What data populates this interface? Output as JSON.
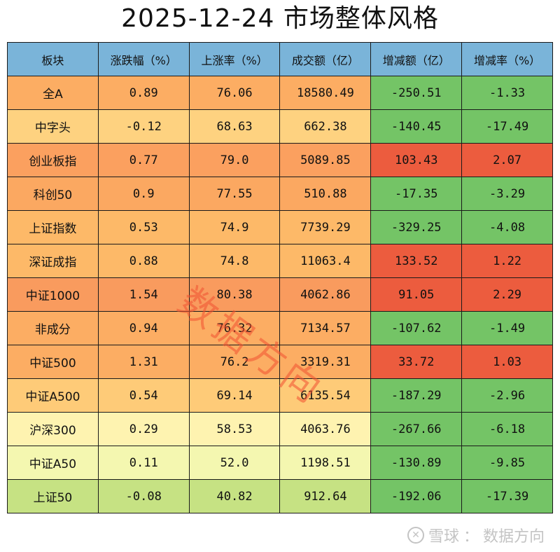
{
  "title": "2025-12-24 市场整体风格",
  "watermark": "数据方向",
  "footer": {
    "brand": "雪球",
    "separator": "：",
    "author": "数据方向",
    "logo_icon": "xueqiu-logo-icon"
  },
  "colors": {
    "header": "#7ab4d9",
    "positive": "#ec5c3e",
    "negative": "#74c466",
    "border": "#1a1a1a"
  },
  "table": {
    "headers": [
      "板块",
      "涨跌幅（%）",
      "上涨率（%）",
      "成交额（亿）",
      "增减额（亿）",
      "增减率（%）"
    ],
    "rows": [
      {
        "name": "全A",
        "chg": "0.89",
        "up": "76.06",
        "amt": "18580.49",
        "delta": "-250.51",
        "rate": "-1.33",
        "bg": "#fcad63"
      },
      {
        "name": "中字头",
        "chg": "-0.12",
        "up": "68.63",
        "amt": "662.38",
        "delta": "-140.45",
        "rate": "-17.49",
        "bg": "#fed280"
      },
      {
        "name": "创业板指",
        "chg": "0.77",
        "up": "79.0",
        "amt": "5089.85",
        "delta": "103.43",
        "rate": "2.07",
        "bg": "#fba05f"
      },
      {
        "name": "科创50",
        "chg": "0.9",
        "up": "77.55",
        "amt": "510.88",
        "delta": "-17.35",
        "rate": "-3.29",
        "bg": "#fba861"
      },
      {
        "name": "上证指数",
        "chg": "0.53",
        "up": "74.9",
        "amt": "7739.29",
        "delta": "-329.25",
        "rate": "-4.08",
        "bg": "#fdb968"
      },
      {
        "name": "深证成指",
        "chg": "0.88",
        "up": "74.8",
        "amt": "11063.4",
        "delta": "133.52",
        "rate": "1.22",
        "bg": "#fdb968"
      },
      {
        "name": "中证1000",
        "chg": "1.54",
        "up": "80.38",
        "amt": "4062.86",
        "delta": "91.05",
        "rate": "2.29",
        "bg": "#f99b5e"
      },
      {
        "name": "非成分",
        "chg": "0.94",
        "up": "76.32",
        "amt": "7134.57",
        "delta": "-107.62",
        "rate": "-1.49",
        "bg": "#fcad63"
      },
      {
        "name": "中证500",
        "chg": "1.31",
        "up": "76.2",
        "amt": "3319.31",
        "delta": "33.72",
        "rate": "1.03",
        "bg": "#fcad63"
      },
      {
        "name": "中证A500",
        "chg": "0.54",
        "up": "69.14",
        "amt": "6135.54",
        "delta": "-187.29",
        "rate": "-2.96",
        "bg": "#fecb78"
      },
      {
        "name": "沪深300",
        "chg": "0.29",
        "up": "58.53",
        "amt": "4063.76",
        "delta": "-267.66",
        "rate": "-6.18",
        "bg": "#fef3b0"
      },
      {
        "name": "中证A50",
        "chg": "0.11",
        "up": "52.0",
        "amt": "1198.51",
        "delta": "-130.89",
        "rate": "-9.85",
        "bg": "#f4f7b0"
      },
      {
        "name": "上证50",
        "chg": "-0.08",
        "up": "40.82",
        "amt": "912.64",
        "delta": "-192.06",
        "rate": "-17.39",
        "bg": "#c6e283"
      }
    ]
  },
  "chart_data": {
    "type": "table",
    "title": "2025-12-24 市场整体风格",
    "columns": [
      "板块",
      "涨跌幅（%）",
      "上涨率（%）",
      "成交额（亿）",
      "增减额（亿）",
      "增减率（%）"
    ],
    "categories": [
      "全A",
      "中字头",
      "创业板指",
      "科创50",
      "上证指数",
      "深证成指",
      "中证1000",
      "非成分",
      "中证500",
      "中证A500",
      "沪深300",
      "中证A50",
      "上证50"
    ],
    "series": [
      {
        "name": "涨跌幅（%）",
        "values": [
          0.89,
          -0.12,
          0.77,
          0.9,
          0.53,
          0.88,
          1.54,
          0.94,
          1.31,
          0.54,
          0.29,
          0.11,
          -0.08
        ]
      },
      {
        "name": "上涨率（%）",
        "values": [
          76.06,
          68.63,
          79.0,
          77.55,
          74.9,
          74.8,
          80.38,
          76.32,
          76.2,
          69.14,
          58.53,
          52.0,
          40.82
        ]
      },
      {
        "name": "成交额（亿）",
        "values": [
          18580.49,
          662.38,
          5089.85,
          510.88,
          7739.29,
          11063.4,
          4062.86,
          7134.57,
          3319.31,
          6135.54,
          4063.76,
          1198.51,
          912.64
        ]
      },
      {
        "name": "增减额（亿）",
        "values": [
          -250.51,
          -140.45,
          103.43,
          -17.35,
          -329.25,
          133.52,
          91.05,
          -107.62,
          33.72,
          -187.29,
          -267.66,
          -130.89,
          -192.06
        ]
      },
      {
        "name": "增减率（%）",
        "values": [
          -1.33,
          -17.49,
          2.07,
          -3.29,
          -4.08,
          1.22,
          2.29,
          -1.49,
          1.03,
          -2.96,
          -6.18,
          -9.85,
          -17.39
        ]
      }
    ],
    "annotations": [
      "watermark: 数据方向",
      "footer: 雪球：数据方向"
    ]
  }
}
